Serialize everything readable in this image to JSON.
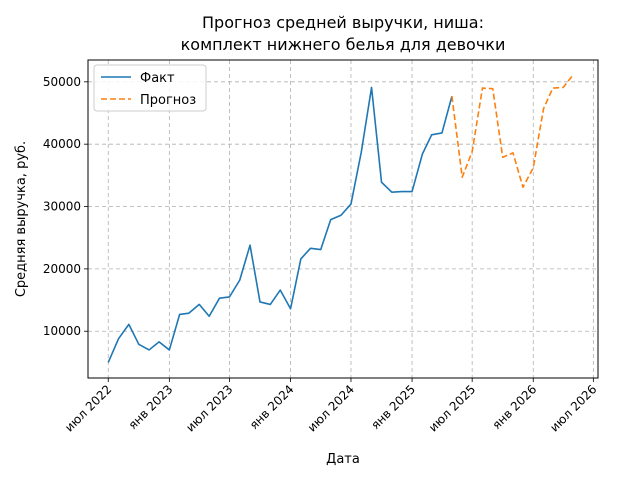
{
  "chart_data": {
    "type": "line",
    "title_lines": [
      "Прогноз средней выручки, ниша:",
      "комплект нижнего белья для девочки"
    ],
    "xlabel": "Дата",
    "ylabel": "Средняя выручка, руб.",
    "ylim": [
      2500,
      53500
    ],
    "xlim": [
      "2022-05-01",
      "2026-07-15"
    ],
    "grid": true,
    "legend_position": "top-left",
    "x_ticks": [
      {
        "date": "2022-07-01",
        "label": "июл 2022"
      },
      {
        "date": "2023-01-01",
        "label": "янв 2023"
      },
      {
        "date": "2023-07-01",
        "label": "июл 2023"
      },
      {
        "date": "2024-01-01",
        "label": "янв 2024"
      },
      {
        "date": "2024-07-01",
        "label": "июл 2024"
      },
      {
        "date": "2025-01-01",
        "label": "янв 2025"
      },
      {
        "date": "2025-07-01",
        "label": "июл 2025"
      },
      {
        "date": "2026-01-01",
        "label": "янв 2026"
      },
      {
        "date": "2026-07-01",
        "label": "июл 2026"
      }
    ],
    "y_ticks": [
      10000,
      20000,
      30000,
      40000,
      50000
    ],
    "series": [
      {
        "name": "Факт",
        "color": "#1f77b4",
        "style": "solid",
        "points": [
          {
            "x": "2022-07-01",
            "y": 5000
          },
          {
            "x": "2022-08-01",
            "y": 8800
          },
          {
            "x": "2022-09-01",
            "y": 11100
          },
          {
            "x": "2022-10-01",
            "y": 7900
          },
          {
            "x": "2022-11-01",
            "y": 7000
          },
          {
            "x": "2022-12-01",
            "y": 8300
          },
          {
            "x": "2023-01-01",
            "y": 7000
          },
          {
            "x": "2023-02-01",
            "y": 12700
          },
          {
            "x": "2023-03-01",
            "y": 12900
          },
          {
            "x": "2023-04-01",
            "y": 14300
          },
          {
            "x": "2023-05-01",
            "y": 12400
          },
          {
            "x": "2023-06-01",
            "y": 15300
          },
          {
            "x": "2023-07-01",
            "y": 15500
          },
          {
            "x": "2023-08-01",
            "y": 18200
          },
          {
            "x": "2023-09-01",
            "y": 23800
          },
          {
            "x": "2023-10-01",
            "y": 14700
          },
          {
            "x": "2023-11-01",
            "y": 14300
          },
          {
            "x": "2023-12-01",
            "y": 16600
          },
          {
            "x": "2024-01-01",
            "y": 13600
          },
          {
            "x": "2024-02-01",
            "y": 21600
          },
          {
            "x": "2024-03-01",
            "y": 23300
          },
          {
            "x": "2024-04-01",
            "y": 23100
          },
          {
            "x": "2024-05-01",
            "y": 27900
          },
          {
            "x": "2024-06-01",
            "y": 28600
          },
          {
            "x": "2024-07-01",
            "y": 30400
          },
          {
            "x": "2024-08-01",
            "y": 38700
          },
          {
            "x": "2024-09-01",
            "y": 49100
          },
          {
            "x": "2024-10-01",
            "y": 33900
          },
          {
            "x": "2024-11-01",
            "y": 32300
          },
          {
            "x": "2024-12-01",
            "y": 32400
          },
          {
            "x": "2025-01-01",
            "y": 32400
          },
          {
            "x": "2025-02-01",
            "y": 38400
          },
          {
            "x": "2025-03-01",
            "y": 41500
          },
          {
            "x": "2025-04-01",
            "y": 41800
          },
          {
            "x": "2025-05-01",
            "y": 47700
          }
        ]
      },
      {
        "name": "Прогноз",
        "color": "#ff7f0e",
        "style": "dashed",
        "points": [
          {
            "x": "2025-05-01",
            "y": 47700
          },
          {
            "x": "2025-06-01",
            "y": 34700
          },
          {
            "x": "2025-07-01",
            "y": 38800
          },
          {
            "x": "2025-08-01",
            "y": 49000
          },
          {
            "x": "2025-09-01",
            "y": 48900
          },
          {
            "x": "2025-10-01",
            "y": 37900
          },
          {
            "x": "2025-11-01",
            "y": 38600
          },
          {
            "x": "2025-12-01",
            "y": 33100
          },
          {
            "x": "2026-01-01",
            "y": 36200
          },
          {
            "x": "2026-02-01",
            "y": 45700
          },
          {
            "x": "2026-03-01",
            "y": 49000
          },
          {
            "x": "2026-04-01",
            "y": 49100
          },
          {
            "x": "2026-05-01",
            "y": 51100
          }
        ]
      }
    ]
  }
}
